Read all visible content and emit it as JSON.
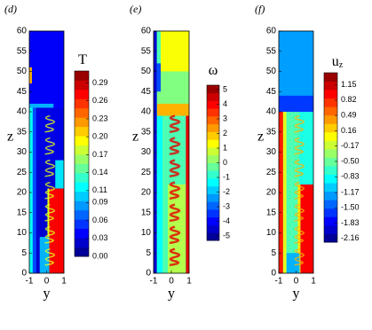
{
  "chart_data": [
    {
      "type": "heatmap",
      "panel_label": "(d)",
      "xlabel": "y",
      "ylabel": "z",
      "colorbar_label": "T",
      "xlim": [
        -1,
        1
      ],
      "ylim": [
        0,
        60
      ],
      "xticks": [
        -1,
        0,
        1
      ],
      "yticks": [
        0,
        5,
        10,
        15,
        20,
        25,
        30,
        35,
        40,
        45,
        50,
        55,
        60
      ],
      "clim": [
        0,
        0.31
      ],
      "cticks": [
        {
          "value": 0,
          "label": "0.00"
        },
        0.03,
        0.06,
        0.09,
        0.11,
        0.14,
        0.17,
        {
          "value": 0.2,
          "label": "0.20"
        },
        0.23,
        0.26,
        0.29
      ]
    },
    {
      "type": "heatmap",
      "panel_label": "(e)",
      "xlabel": "y",
      "ylabel": "z",
      "colorbar_label": "ω",
      "xlim": [
        -1,
        1
      ],
      "ylim": [
        0,
        60
      ],
      "xticks": [
        -1,
        0,
        1
      ],
      "yticks": [
        0,
        5,
        10,
        15,
        20,
        25,
        30,
        35,
        40,
        45,
        50,
        55,
        60
      ],
      "clim": [
        -5.3,
        5.3
      ],
      "cticks": [
        -5,
        -4,
        -3,
        -2,
        -1,
        0,
        1,
        2,
        3,
        4,
        5
      ]
    },
    {
      "type": "heatmap",
      "panel_label": "(f)",
      "xlabel": "y",
      "ylabel": "z",
      "colorbar_label": "u",
      "colorbar_label_sub": "z",
      "xlim": [
        -1,
        1
      ],
      "ylim": [
        0,
        60
      ],
      "xticks": [
        -1,
        0,
        1
      ],
      "yticks": [
        0,
        5,
        10,
        15,
        20,
        25,
        30,
        35,
        40,
        45,
        50,
        55,
        60
      ],
      "clim": [
        -2.24,
        1.41
      ],
      "cticks": [
        -2.16,
        -1.83,
        {
          "value": -1.5,
          "label": "-1.50"
        },
        -1.17,
        -0.83,
        {
          "value": -0.5,
          "label": "-0.50"
        },
        -0.17,
        0.16,
        0.49,
        0.82,
        1.15
      ]
    }
  ]
}
